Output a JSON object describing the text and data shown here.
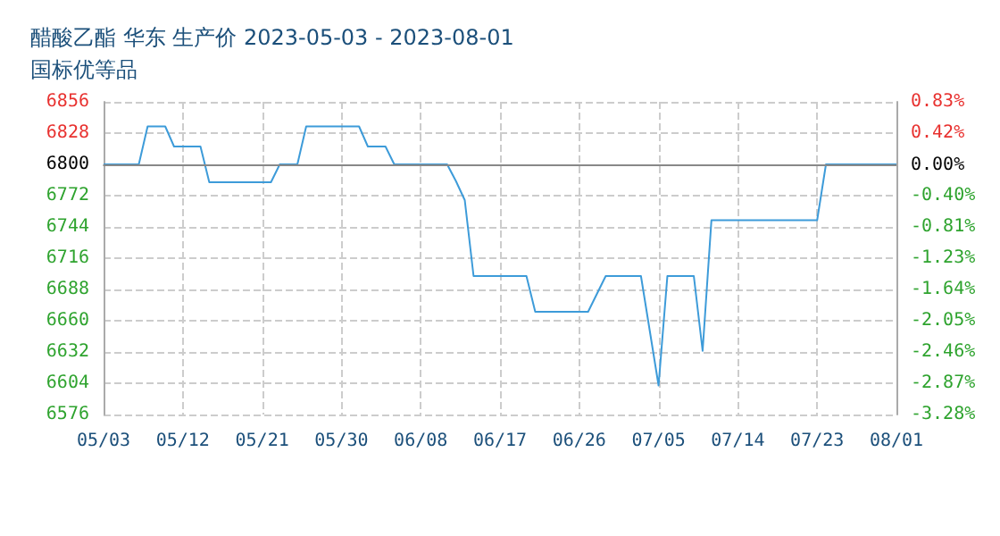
{
  "chart_data": {
    "type": "line",
    "title": "醋酸乙酯 华东 生产价 2023-05-03 - 2023-08-01",
    "subtitle": "国标优等品",
    "x": [
      "2023-05-03",
      "2023-05-07",
      "2023-05-08",
      "2023-05-10",
      "2023-05-11",
      "2023-05-14",
      "2023-05-15",
      "2023-05-22",
      "2023-05-23",
      "2023-05-25",
      "2023-05-26",
      "2023-06-01",
      "2023-06-02",
      "2023-06-04",
      "2023-06-05",
      "2023-06-11",
      "2023-06-12",
      "2023-06-13",
      "2023-06-14",
      "2023-06-20",
      "2023-06-21",
      "2023-06-27",
      "2023-06-29",
      "2023-07-03",
      "2023-07-05",
      "2023-07-06",
      "2023-07-09",
      "2023-07-10",
      "2023-07-11",
      "2023-07-23",
      "2023-07-24",
      "2023-08-01"
    ],
    "series": [
      {
        "color": "#3d9bd9",
        "values": [
          6800,
          6800,
          6834,
          6834,
          6816,
          6816,
          6784,
          6784,
          6800,
          6800,
          6834,
          6834,
          6816,
          6816,
          6800,
          6800,
          6785,
          6768,
          6700,
          6700,
          6668,
          6668,
          6700,
          6700,
          6602,
          6700,
          6700,
          6633,
          6750,
          6750,
          6800,
          6800
        ]
      }
    ],
    "xlim": [
      "2023-05-03",
      "2023-08-01"
    ],
    "xticks": [
      {
        "value": "2023-05-03",
        "label": "05/03"
      },
      {
        "value": "2023-05-12",
        "label": "05/12"
      },
      {
        "value": "2023-05-21",
        "label": "05/21"
      },
      {
        "value": "2023-05-30",
        "label": "05/30"
      },
      {
        "value": "2023-06-08",
        "label": "06/08"
      },
      {
        "value": "2023-06-17",
        "label": "06/17"
      },
      {
        "value": "2023-06-26",
        "label": "06/26"
      },
      {
        "value": "2023-07-05",
        "label": "07/05"
      },
      {
        "value": "2023-07-14",
        "label": "07/14"
      },
      {
        "value": "2023-07-23",
        "label": "07/23"
      },
      {
        "value": "2023-08-01",
        "label": "08/01"
      }
    ],
    "ylim": [
      6576,
      6856
    ],
    "yticks": [
      6576,
      6604,
      6632,
      6660,
      6688,
      6716,
      6744,
      6772,
      6800,
      6828,
      6856
    ],
    "y2lim": [
      -3.28,
      0.83
    ],
    "y2ticks": [
      {
        "value": -3.28,
        "label": "-3.28%"
      },
      {
        "value": -2.87,
        "label": "-2.87%"
      },
      {
        "value": -2.46,
        "label": "-2.46%"
      },
      {
        "value": -2.05,
        "label": "-2.05%"
      },
      {
        "value": -1.64,
        "label": "-1.64%"
      },
      {
        "value": -1.23,
        "label": "-1.23%"
      },
      {
        "value": -0.81,
        "label": "-0.81%"
      },
      {
        "value": -0.4,
        "label": "-0.40%"
      },
      {
        "value": 0,
        "label": "0.00%"
      },
      {
        "value": 0.42,
        "label": "0.42%"
      },
      {
        "value": 0.83,
        "label": "0.83%"
      }
    ],
    "ref_lines": [
      {
        "axis": "y",
        "value": 6800,
        "color": "#888888"
      }
    ],
    "grid": true,
    "marker": "none",
    "line_style": "solid"
  }
}
